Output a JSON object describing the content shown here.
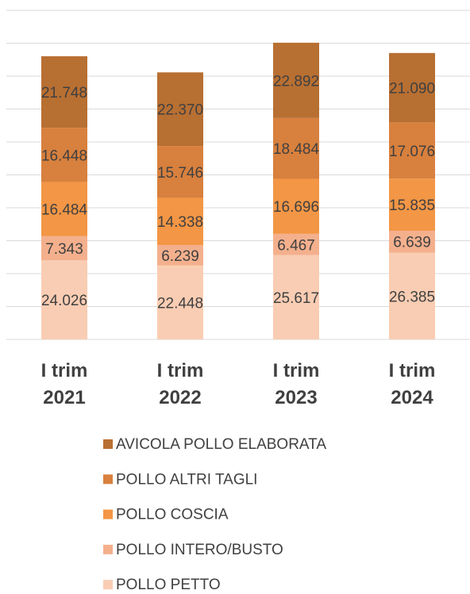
{
  "chart_data": {
    "type": "stacked_bar",
    "categories": [
      "I trim 2021",
      "I trim 2022",
      "I trim 2023",
      "I trim 2024"
    ],
    "series": [
      {
        "name": "POLLO PETTO",
        "color": "#f9cdb3",
        "values": [
          24026,
          22448,
          25617,
          26385
        ],
        "value_labels": [
          "24.026",
          "22.448",
          "25.617",
          "26.385"
        ]
      },
      {
        "name": "POLLO INTERO/BUSTO",
        "color": "#f4b08d",
        "values": [
          7343,
          6239,
          6467,
          6639
        ],
        "value_labels": [
          "7.343",
          "6.239",
          "6.467",
          "6.639"
        ]
      },
      {
        "name": "POLLO COSCIA",
        "color": "#f39645",
        "values": [
          16484,
          14338,
          16696,
          15835
        ],
        "value_labels": [
          "16.484",
          "14.338",
          "16.696",
          "15.835"
        ]
      },
      {
        "name": "POLLO ALTRI TAGLI",
        "color": "#d8803d",
        "values": [
          16448,
          15746,
          18484,
          17076
        ],
        "value_labels": [
          "16.448",
          "15.746",
          "18.484",
          "17.076"
        ]
      },
      {
        "name": "AVICOLA POLLO ELABORATA",
        "color": "#b86f32",
        "values": [
          21748,
          22370,
          22892,
          21090
        ],
        "value_labels": [
          "21.748",
          "22.370",
          "22.892",
          "21.090"
        ]
      }
    ],
    "ylim": [
      0,
      100000
    ],
    "yticks": [
      0,
      10000,
      20000,
      30000,
      40000,
      50000,
      60000,
      70000,
      80000,
      90000,
      100000
    ],
    "grid": true
  }
}
